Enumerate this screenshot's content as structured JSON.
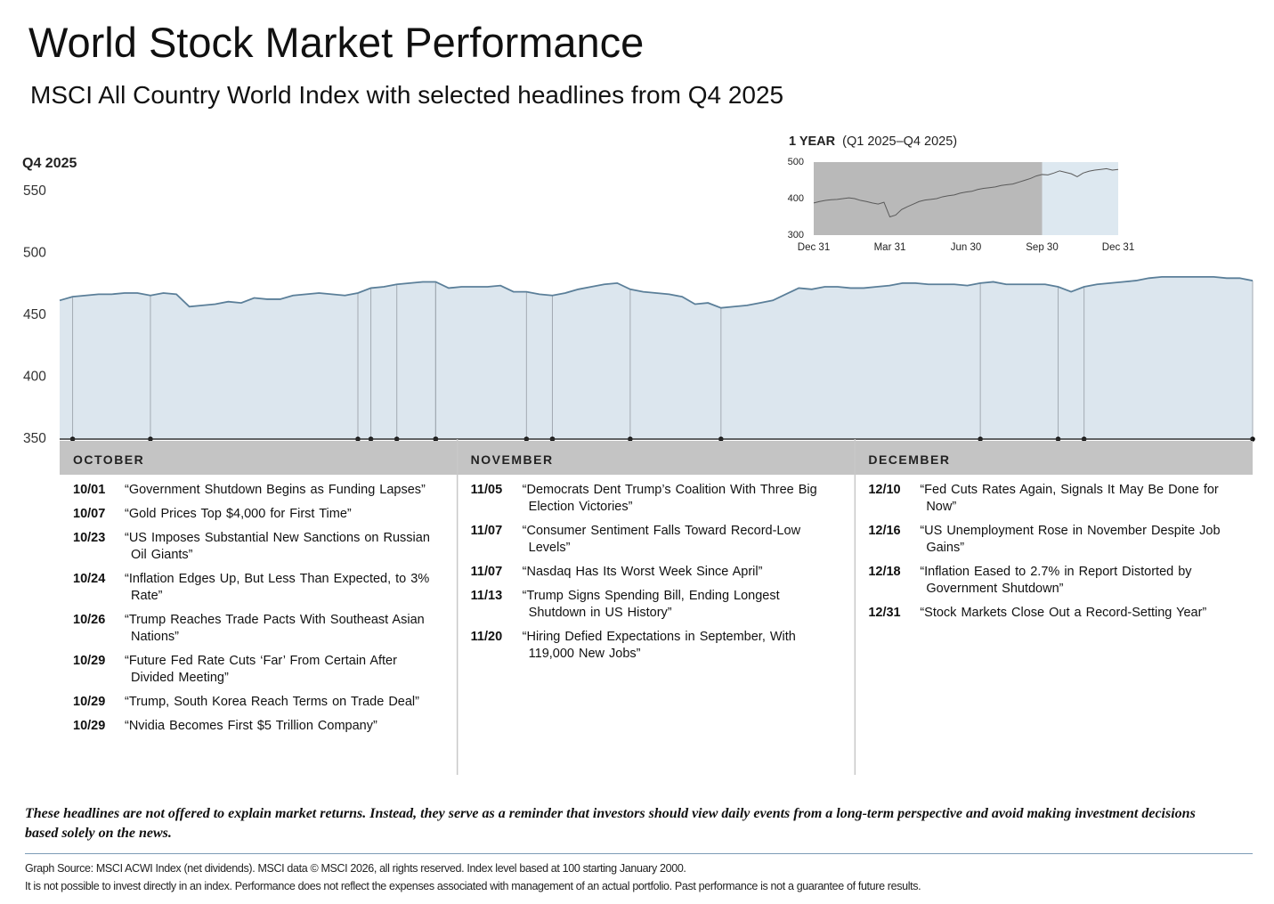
{
  "chart_data": [
    {
      "type": "area",
      "title": "World Stock Market Performance",
      "subtitle": "MSCI All Country World Index with selected headlines from Q4 2025",
      "ylabel": "Q4 2025",
      "ylim": [
        350,
        550
      ],
      "yticks": [
        350,
        400,
        450,
        500,
        550
      ],
      "color": "#5b7f99",
      "fill_color": "#dce6ee",
      "marker_color": "#a3abb3",
      "values": [
        462,
        465,
        466,
        467,
        467,
        468,
        468,
        466,
        468,
        467,
        457,
        458,
        459,
        461,
        460,
        464,
        463,
        463,
        466,
        467,
        468,
        467,
        466,
        468,
        472,
        473,
        475,
        476,
        477,
        477,
        472,
        473,
        473,
        473,
        474,
        469,
        469,
        467,
        466,
        468,
        471,
        473,
        475,
        476,
        471,
        469,
        468,
        467,
        465,
        459,
        460,
        456,
        457,
        458,
        460,
        462,
        467,
        472,
        471,
        473,
        473,
        472,
        472,
        473,
        474,
        476,
        476,
        475,
        475,
        475,
        474,
        476,
        477,
        475,
        475,
        475,
        475,
        473,
        469,
        473,
        475,
        476,
        477,
        478,
        480,
        481,
        481,
        481,
        481,
        481,
        480,
        480,
        478
      ]
    },
    {
      "type": "line",
      "title": "1 YEAR",
      "subtitle": "(Q1 2025–Q4 2025)",
      "ylim": [
        300,
        500
      ],
      "yticks": [
        300,
        400,
        500
      ],
      "xtick_labels": [
        "Dec 31",
        "Mar 31",
        "Jun 30",
        "Sep 30",
        "Dec 31"
      ],
      "color": "#5a5a5a",
      "background_color": "#b9b9b9",
      "highlight_color": "#dde8f0",
      "values": [
        388,
        392,
        395,
        397,
        398,
        400,
        402,
        400,
        395,
        392,
        388,
        385,
        390,
        350,
        355,
        370,
        378,
        385,
        392,
        396,
        398,
        400,
        405,
        408,
        410,
        415,
        418,
        420,
        425,
        428,
        430,
        432,
        436,
        438,
        440,
        445,
        450,
        455,
        462,
        466,
        465,
        470,
        476,
        472,
        468,
        460,
        470,
        475,
        478,
        480,
        482,
        478,
        480
      ]
    }
  ],
  "headlines": [
    {
      "month": "OCTOBER",
      "items": [
        {
          "date": "10/01",
          "text": "“Government Shutdown Begins as Funding Lapses”"
        },
        {
          "date": "10/07",
          "text": "“Gold Prices Top $4,000 for First Time”"
        },
        {
          "date": "10/23",
          "text": "“US Imposes Substantial New Sanctions on Russian Oil Giants”"
        },
        {
          "date": "10/24",
          "text": "“Inflation Edges Up, But Less Than Expected, to 3% Rate”"
        },
        {
          "date": "10/26",
          "text": "“Trump Reaches Trade Pacts With Southeast Asian Nations”"
        },
        {
          "date": "10/29",
          "text": "“Future Fed Rate Cuts ‘Far’ From Certain After Divided Meeting”"
        },
        {
          "date": "10/29",
          "text": "“Trump, South Korea Reach Terms on Trade Deal”"
        },
        {
          "date": "10/29",
          "text": "“Nvidia Becomes First $5 Trillion Company”"
        }
      ]
    },
    {
      "month": "NOVEMBER",
      "items": [
        {
          "date": "11/05",
          "text": "“Democrats Dent Trump’s Coalition With Three Big Election Victories”"
        },
        {
          "date": "11/07",
          "text": "“Consumer Sentiment Falls Toward Record-Low Levels”"
        },
        {
          "date": "11/07",
          "text": "“Nasdaq Has Its Worst Week Since April”"
        },
        {
          "date": "11/13",
          "text": "“Trump Signs Spending Bill, Ending Longest Shutdown in US History”"
        },
        {
          "date": "11/20",
          "text": "“Hiring Defied Expectations in September, With 119,000 New Jobs”"
        }
      ]
    },
    {
      "month": "DECEMBER",
      "items": [
        {
          "date": "12/10",
          "text": "“Fed Cuts Rates Again, Signals It May Be Done for Now”"
        },
        {
          "date": "12/16",
          "text": "“US Unemployment Rose in November Despite Job Gains”"
        },
        {
          "date": "12/18",
          "text": "“Inflation Eased to 2.7% in Report Distorted by Government Shutdown”"
        },
        {
          "date": "12/31",
          "text": "“Stock Markets Close Out a Record-Setting Year”"
        }
      ]
    }
  ],
  "disclaimer": "These headlines are not offered to explain market returns. Instead, they serve as a reminder that investors should view daily events from a long-term perspective and avoid making investment decisions based solely on the news.",
  "source": [
    "Graph Source: MSCI ACWI Index (net dividends). MSCI data © MSCI 2026, all rights reserved. Index level based at 100 starting January 2000.",
    "It is not possible to invest directly in an index. Performance does not reflect the expenses associated with management of an actual portfolio. Past performance is not a guarantee of future results."
  ]
}
